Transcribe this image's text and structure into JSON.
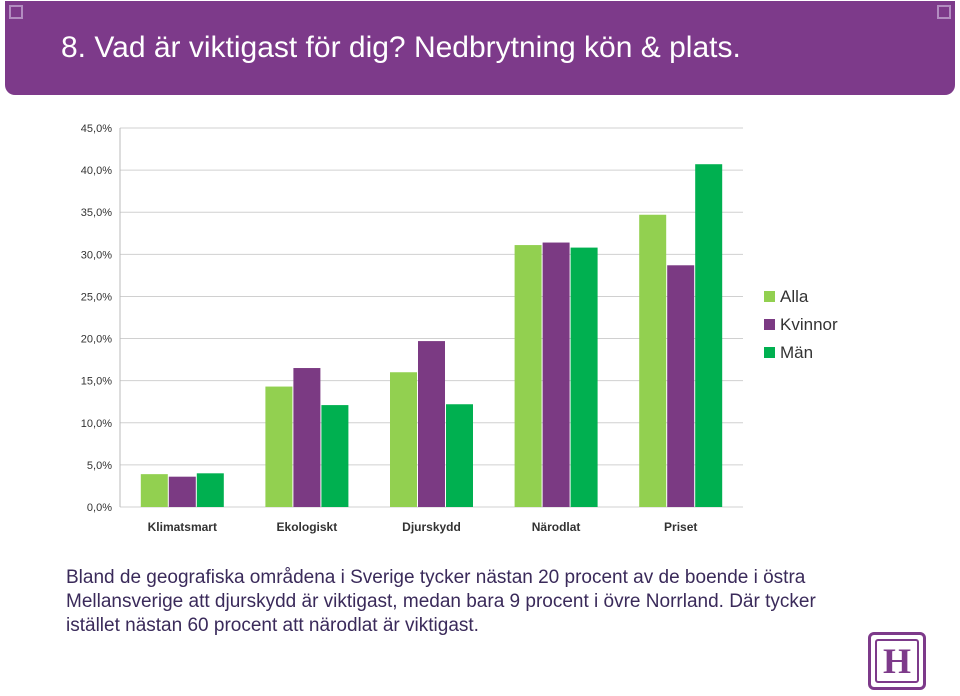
{
  "title": "8. Vad är viktigast för dig? Nedbrytning kön & plats.",
  "body_text": "Bland de geografiska områdena i Sverige tycker nästan 20 procent av de boende i östra Mellansverige att djurskydd är viktigast, medan bara 9 procent i övre Norrland. Där tycker istället nästan 60 procent att närodlat är viktigast.",
  "logo_letter": "H",
  "colors": {
    "header": "#7d3a8a",
    "alla": "#92d050",
    "kvinnor": "#7b3a83",
    "man": "#00b050"
  },
  "chart_data": {
    "type": "bar",
    "categories": [
      "Klimatsmart",
      "Ekologiskt",
      "Djurskydd",
      "Närodlat",
      "Priset"
    ],
    "series": [
      {
        "name": "Alla",
        "values": [
          3.9,
          14.3,
          16.0,
          31.1,
          34.7
        ]
      },
      {
        "name": "Kvinnor",
        "values": [
          3.6,
          16.5,
          19.7,
          31.4,
          28.7
        ]
      },
      {
        "name": "Män",
        "values": [
          4.0,
          12.1,
          12.2,
          30.8,
          40.7
        ]
      }
    ],
    "ylim": [
      0,
      45
    ],
    "yticks": [
      "0,0%",
      "5,0%",
      "10,0%",
      "15,0%",
      "20,0%",
      "25,0%",
      "30,0%",
      "35,0%",
      "40,0%",
      "45,0%"
    ],
    "grid": true,
    "legend": "right"
  }
}
